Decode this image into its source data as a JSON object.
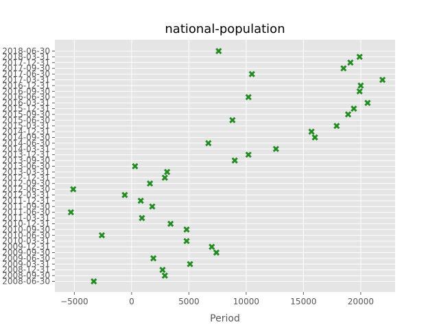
{
  "chart_data": {
    "type": "scatter",
    "title": "national-population",
    "xlabel": "Period",
    "ylabel": "",
    "xlim": [
      -6700,
      23000
    ],
    "xticks": [
      -5000,
      0,
      5000,
      10000,
      15000,
      20000
    ],
    "xtick_labels": [
      "−5000",
      "0",
      "5000",
      "10000",
      "15000",
      "20000"
    ],
    "grid": true,
    "marker": "X",
    "colors": {
      "marker": "#228B22",
      "plot_bg": "#e5e5e5",
      "grid": "#ffffff",
      "text": "#555555"
    },
    "categories": [
      "2008-06-30",
      "2008-09-30",
      "2008-12-31",
      "2009-03-31",
      "2009-06-30",
      "2009-09-30",
      "2009-12-31",
      "2010-03-31",
      "2010-06-30",
      "2010-09-30",
      "2010-12-31",
      "2011-03-31",
      "2011-06-30",
      "2011-09-30",
      "2011-12-31",
      "2012-03-31",
      "2012-06-30",
      "2012-09-30",
      "2012-12-31",
      "2013-03-31",
      "2013-06-30",
      "2013-09-30",
      "2013-12-31",
      "2014-03-31",
      "2014-06-30",
      "2014-09-30",
      "2014-12-31",
      "2015-03-31",
      "2015-06-30",
      "2015-09-30",
      "2015-12-31",
      "2016-03-31",
      "2016-06-30",
      "2016-09-30",
      "2016-12-31",
      "2017-03-31",
      "2017-06-30",
      "2017-09-30",
      "2017-12-31",
      "2018-03-31",
      "2018-06-30"
    ],
    "values": [
      -3300,
      2900,
      2700,
      5100,
      1900,
      7400,
      7000,
      4800,
      -2600,
      4800,
      3400,
      900,
      -5300,
      1800,
      800,
      -600,
      -5100,
      1600,
      2900,
      3100,
      300,
      9000,
      10200,
      12600,
      6700,
      16000,
      15700,
      17900,
      8800,
      18900,
      19400,
      20600,
      10200,
      19900,
      20000,
      21900,
      10500,
      18500,
      19100,
      19900,
      7600
    ]
  }
}
